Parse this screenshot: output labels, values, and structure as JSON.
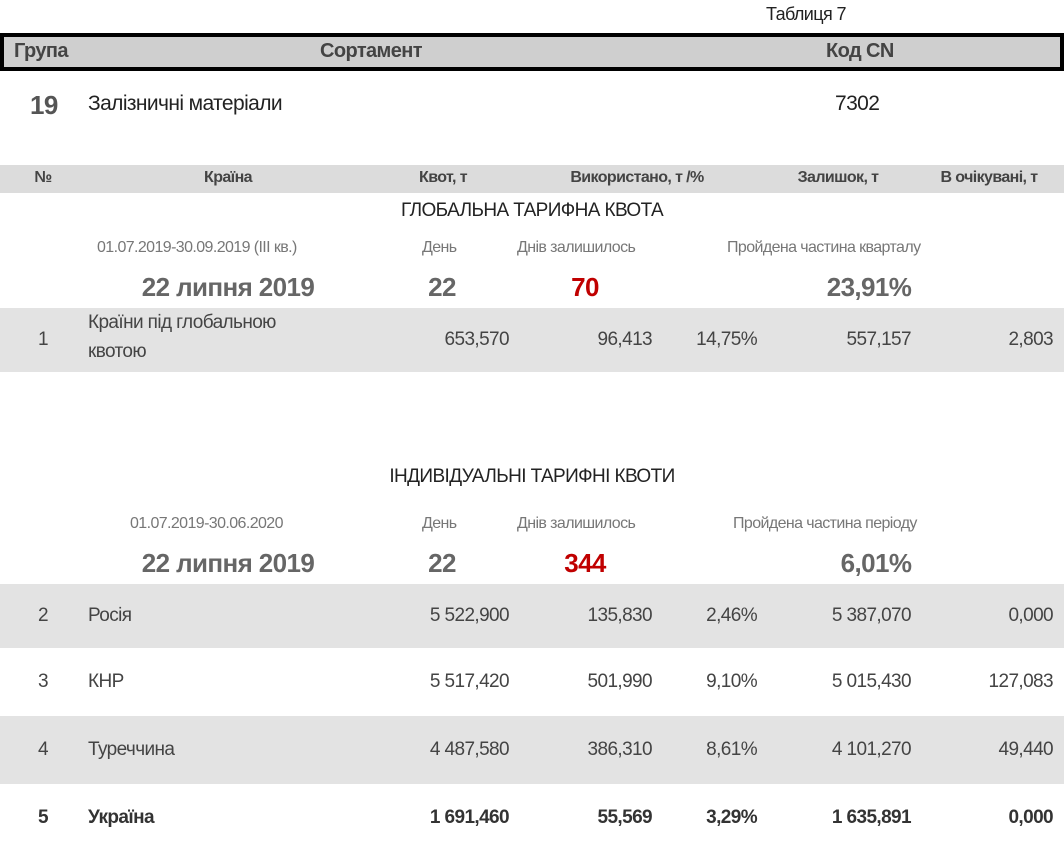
{
  "table_label": "Таблиця 7",
  "header": {
    "group": "Група",
    "assortment": "Сортамент",
    "cn_code": "Код CN"
  },
  "product": {
    "group": "19",
    "name": "Залізничні матеріали",
    "cn_code": "7302"
  },
  "columns": [
    "№",
    "Країна",
    "Квот, т",
    "Використано, т /%",
    "Залишок, т",
    "В очікувані, т"
  ],
  "global": {
    "title": "ГЛОБАЛЬНА ТАРИФНА КВОТА",
    "period": "01.07.2019-30.09.2019  (III кв.)",
    "day_label": "День",
    "days_left_label": "Днів залишилось",
    "passed_label": "Пройдена частина кварталу",
    "date": "22 липня 2019",
    "day": "22",
    "days_left": "70",
    "passed": "23,91%",
    "rows": [
      {
        "no": "1",
        "country": [
          "Країни під глобальною",
          "квотою"
        ],
        "quota": "653,570",
        "used": "96,413",
        "pct": "14,75%",
        "rest": "557,157",
        "pending": "2,803"
      }
    ]
  },
  "individual": {
    "title": "ІНДИВІДУАЛЬНІ ТАРИФНІ КВОТИ",
    "period": "01.07.2019-30.06.2020",
    "day_label": "День",
    "days_left_label": "Днів залишилось",
    "passed_label": "Пройдена частина періоду",
    "date": "22 липня 2019",
    "day": "22",
    "days_left": "344",
    "passed": "6,01%",
    "rows": [
      {
        "no": "2",
        "country": "Росія",
        "quota": "5 522,900",
        "used": "135,830",
        "pct": "2,46%",
        "rest": "5 387,070",
        "pending": "0,000"
      },
      {
        "no": "3",
        "country": "КНР",
        "quota": "5 517,420",
        "used": "501,990",
        "pct": "9,10%",
        "rest": "5 015,430",
        "pending": "127,083"
      },
      {
        "no": "4",
        "country": "Туреччина",
        "quota": "4 487,580",
        "used": "386,310",
        "pct": "8,61%",
        "rest": "4 101,270",
        "pending": "49,440"
      },
      {
        "no": "5",
        "country": "Україна",
        "quota": "1 691,460",
        "used": "55,569",
        "pct": "3,29%",
        "rest": "1 635,891",
        "pending": "0,000"
      }
    ]
  }
}
